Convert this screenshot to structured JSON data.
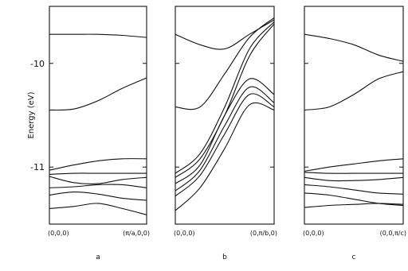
{
  "chart_data": {
    "type": "line",
    "ylabel": "Energy (eV)",
    "ylim": [
      -11.55,
      -9.45
    ],
    "yticks": [
      -10,
      -11
    ],
    "ytick_labels": [
      "-10",
      "-11"
    ],
    "grid": false,
    "panels": [
      {
        "label": "a",
        "xtick_labels": [
          "(0,0,0)",
          "(π/a,0,0)"
        ],
        "x": [
          0,
          0.25,
          0.5,
          0.75,
          1
        ],
        "series": [
          {
            "values": [
              -9.72,
              -9.72,
              -9.72,
              -9.73,
              -9.75
            ]
          },
          {
            "values": [
              -10.45,
              -10.44,
              -10.36,
              -10.24,
              -10.14
            ]
          },
          {
            "values": [
              -11.03,
              -10.98,
              -10.94,
              -10.92,
              -10.92
            ]
          },
          {
            "values": [
              -11.07,
              -11.06,
              -11.06,
              -11.06,
              -11.06
            ]
          },
          {
            "values": [
              -11.09,
              -11.15,
              -11.16,
              -11.12,
              -11.1
            ]
          },
          {
            "values": [
              -11.2,
              -11.19,
              -11.17,
              -11.17,
              -11.2
            ]
          },
          {
            "values": [
              -11.27,
              -11.24,
              -11.26,
              -11.3,
              -11.32
            ]
          },
          {
            "values": [
              -11.4,
              -11.38,
              -11.35,
              -11.4,
              -11.46
            ]
          }
        ]
      },
      {
        "label": "b",
        "xtick_labels": [
          "(0,0,0)",
          "(0,π/b,0)"
        ],
        "x": [
          0,
          0.25,
          0.5,
          0.75,
          1
        ],
        "series": [
          {
            "values": [
              -9.72,
              -9.82,
              -9.86,
              -9.72,
              -9.58
            ]
          },
          {
            "values": [
              -10.42,
              -10.42,
              -10.1,
              -9.75,
              -9.56
            ]
          },
          {
            "values": [
              -11.06,
              -10.87,
              -10.42,
              -9.86,
              -9.6
            ]
          },
          {
            "values": [
              -11.1,
              -10.92,
              -10.5,
              -9.93,
              -9.62
            ]
          },
          {
            "values": [
              -11.16,
              -10.98,
              -10.5,
              -10.15,
              -10.3
            ]
          },
          {
            "values": [
              -11.23,
              -11.03,
              -10.6,
              -10.23,
              -10.38
            ]
          },
          {
            "values": [
              -11.28,
              -11.08,
              -10.68,
              -10.3,
              -10.42
            ]
          },
          {
            "values": [
              -11.42,
              -11.2,
              -10.82,
              -10.4,
              -10.45
            ]
          }
        ]
      },
      {
        "label": "c",
        "xtick_labels": [
          "(0,0,0)",
          "(0,0,π/c)"
        ],
        "x": [
          0,
          0.25,
          0.5,
          0.75,
          1
        ],
        "series": [
          {
            "values": [
              -9.72,
              -9.76,
              -9.82,
              -9.92,
              -9.98
            ]
          },
          {
            "values": [
              -10.45,
              -10.42,
              -10.3,
              -10.15,
              -10.08
            ]
          },
          {
            "values": [
              -11.04,
              -11.0,
              -10.97,
              -10.94,
              -10.92
            ]
          },
          {
            "values": [
              -11.05,
              -11.06,
              -11.06,
              -11.06,
              -11.06
            ]
          },
          {
            "values": [
              -11.1,
              -11.13,
              -11.13,
              -11.12,
              -11.1
            ]
          },
          {
            "values": [
              -11.17,
              -11.19,
              -11.22,
              -11.25,
              -11.26
            ]
          },
          {
            "values": [
              -11.25,
              -11.27,
              -11.31,
              -11.35,
              -11.37
            ]
          },
          {
            "values": [
              -11.39,
              -11.37,
              -11.36,
              -11.35,
              -11.36
            ]
          }
        ]
      }
    ]
  }
}
